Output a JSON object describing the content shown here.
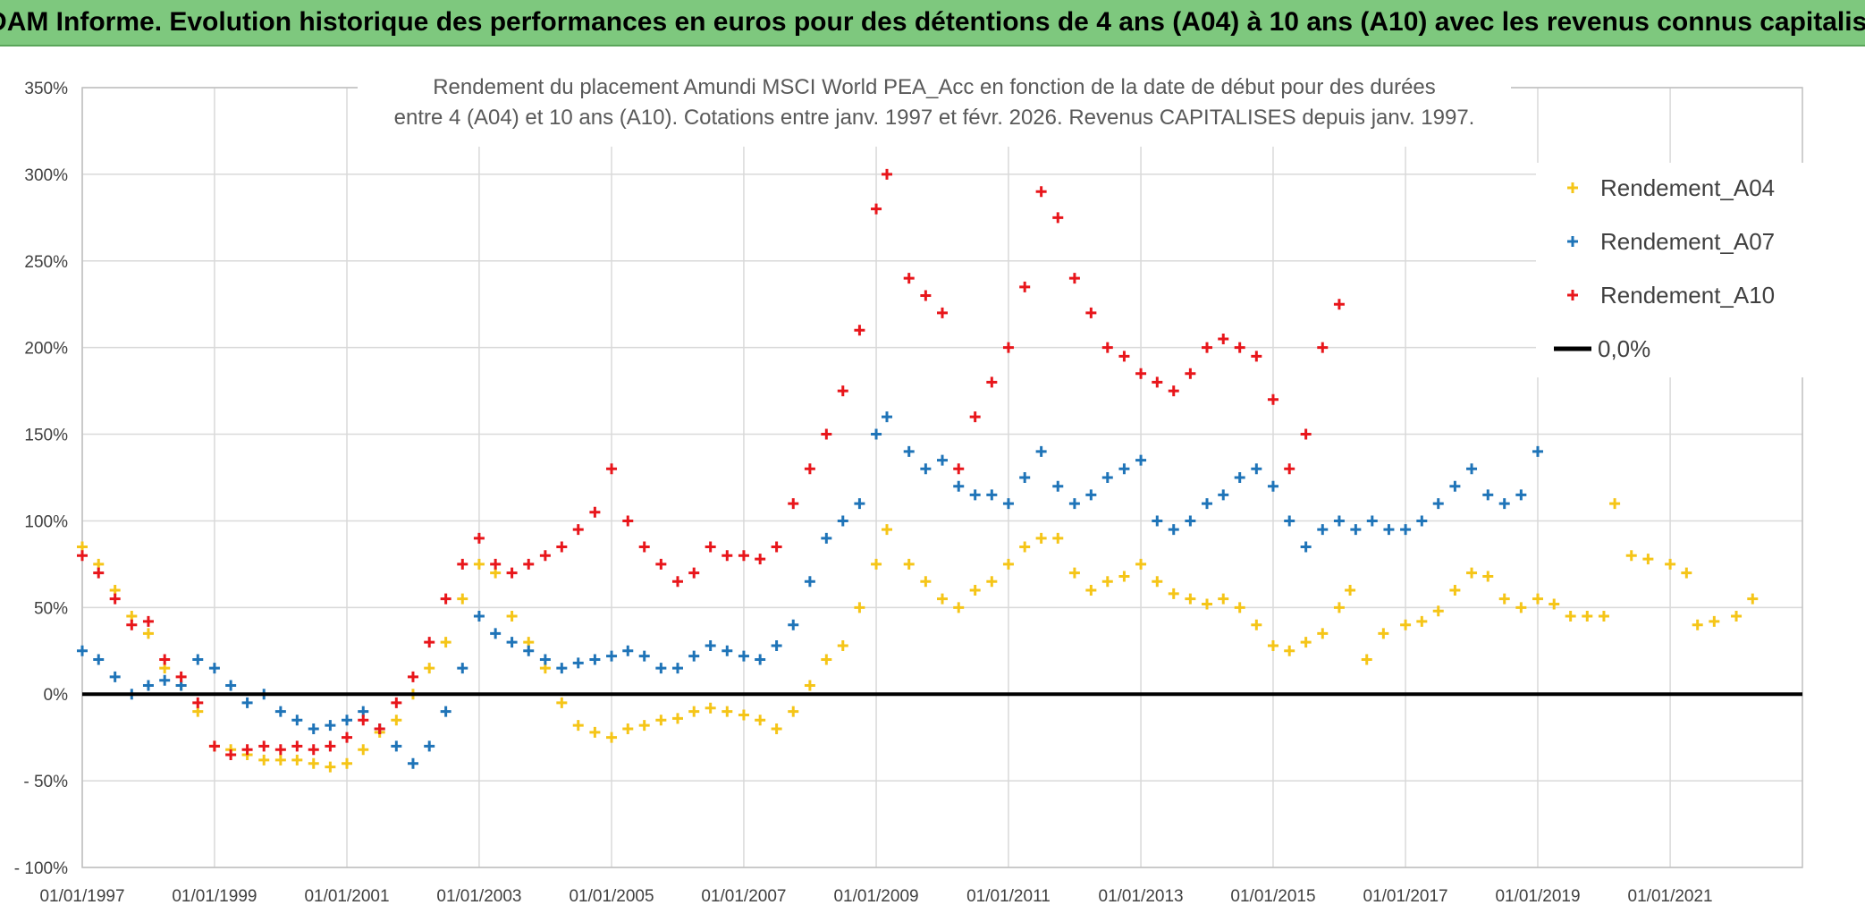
{
  "header": {
    "banner": "ADAM Informe. Evolution historique des performances en euros pour des détentions de 4 ans (A04) à 10 ans (A10) avec les revenus connus capitalisés"
  },
  "colors": {
    "banner_bg": "#7ec87e",
    "a04": "#f5c518",
    "a07": "#1f74b8",
    "a10": "#e8161b",
    "zero": "#000000",
    "grid": "#d9d9d9"
  },
  "chart_data": {
    "type": "scatter",
    "title": "Rendement du placement Amundi MSCI World PEA_Acc en fonction de la date de début pour des durées",
    "subtitle": "entre 4 (A04) et 10 ans (A10). Cotations entre janv. 1997 et févr. 2026. Revenus CAPITALISES depuis janv. 1997.",
    "xlabel": "",
    "ylabel": "",
    "xlim": [
      "1997-01-01",
      "2023-01-01"
    ],
    "ylim": [
      -100,
      350
    ],
    "x_ticks": [
      "01/01/1997",
      "01/01/1999",
      "01/01/2001",
      "01/01/2003",
      "01/01/2005",
      "01/01/2007",
      "01/01/2009",
      "01/01/2011",
      "01/01/2013",
      "01/01/2015",
      "01/01/2017",
      "01/01/2019",
      "01/01/2021"
    ],
    "y_ticks": [
      "- 100%",
      "- 50%",
      "0%",
      "50%",
      "100%",
      "150%",
      "200%",
      "250%",
      "300%",
      "350%"
    ],
    "y_tick_values": [
      -100,
      -50,
      0,
      50,
      100,
      150,
      200,
      250,
      300,
      350
    ],
    "grid": true,
    "legend_position": "top-right",
    "reference_line": {
      "name": "0,0%",
      "value": 0
    },
    "series": [
      {
        "name": "Rendement_A04",
        "marker": "+",
        "points": [
          [
            "1997-01-01",
            85
          ],
          [
            "1997-04-01",
            75
          ],
          [
            "1997-07-01",
            60
          ],
          [
            "1997-10-01",
            45
          ],
          [
            "1998-01-01",
            35
          ],
          [
            "1998-04-01",
            15
          ],
          [
            "1998-07-01",
            5
          ],
          [
            "1998-10-01",
            -10
          ],
          [
            "1999-01-01",
            -30
          ],
          [
            "1999-04-01",
            -32
          ],
          [
            "1999-07-01",
            -35
          ],
          [
            "1999-10-01",
            -38
          ],
          [
            "2000-01-01",
            -38
          ],
          [
            "2000-04-01",
            -38
          ],
          [
            "2000-07-01",
            -40
          ],
          [
            "2000-10-01",
            -42
          ],
          [
            "2001-01-01",
            -40
          ],
          [
            "2001-04-01",
            -32
          ],
          [
            "2001-07-01",
            -22
          ],
          [
            "2001-10-01",
            -15
          ],
          [
            "2002-01-01",
            0
          ],
          [
            "2002-04-01",
            15
          ],
          [
            "2002-07-01",
            30
          ],
          [
            "2002-10-01",
            55
          ],
          [
            "2003-01-01",
            75
          ],
          [
            "2003-04-01",
            70
          ],
          [
            "2003-07-01",
            45
          ],
          [
            "2003-10-01",
            30
          ],
          [
            "2004-01-01",
            15
          ],
          [
            "2004-04-01",
            -5
          ],
          [
            "2004-07-01",
            -18
          ],
          [
            "2004-10-01",
            -22
          ],
          [
            "2005-01-01",
            -25
          ],
          [
            "2005-04-01",
            -20
          ],
          [
            "2005-07-01",
            -18
          ],
          [
            "2005-10-01",
            -15
          ],
          [
            "2006-01-01",
            -14
          ],
          [
            "2006-04-01",
            -10
          ],
          [
            "2006-07-01",
            -8
          ],
          [
            "2006-10-01",
            -10
          ],
          [
            "2007-01-01",
            -12
          ],
          [
            "2007-04-01",
            -15
          ],
          [
            "2007-07-01",
            -20
          ],
          [
            "2007-10-01",
            -10
          ],
          [
            "2008-01-01",
            5
          ],
          [
            "2008-04-01",
            20
          ],
          [
            "2008-07-01",
            28
          ],
          [
            "2008-10-01",
            50
          ],
          [
            "2009-01-01",
            75
          ],
          [
            "2009-03-01",
            95
          ],
          [
            "2009-07-01",
            75
          ],
          [
            "2009-10-01",
            65
          ],
          [
            "2010-01-01",
            55
          ],
          [
            "2010-04-01",
            50
          ],
          [
            "2010-07-01",
            60
          ],
          [
            "2010-10-01",
            65
          ],
          [
            "2011-01-01",
            75
          ],
          [
            "2011-04-01",
            85
          ],
          [
            "2011-07-01",
            90
          ],
          [
            "2011-10-01",
            90
          ],
          [
            "2012-01-01",
            70
          ],
          [
            "2012-04-01",
            60
          ],
          [
            "2012-07-01",
            65
          ],
          [
            "2012-10-01",
            68
          ],
          [
            "2013-01-01",
            75
          ],
          [
            "2013-04-01",
            65
          ],
          [
            "2013-07-01",
            58
          ],
          [
            "2013-10-01",
            55
          ],
          [
            "2014-01-01",
            52
          ],
          [
            "2014-04-01",
            55
          ],
          [
            "2014-07-01",
            50
          ],
          [
            "2014-10-01",
            40
          ],
          [
            "2015-01-01",
            28
          ],
          [
            "2015-04-01",
            25
          ],
          [
            "2015-07-01",
            30
          ],
          [
            "2015-10-01",
            35
          ],
          [
            "2016-01-01",
            50
          ],
          [
            "2016-03-01",
            60
          ],
          [
            "2016-06-01",
            20
          ],
          [
            "2016-09-01",
            35
          ],
          [
            "2017-01-01",
            40
          ],
          [
            "2017-04-01",
            42
          ],
          [
            "2017-07-01",
            48
          ],
          [
            "2017-10-01",
            60
          ],
          [
            "2018-01-01",
            70
          ],
          [
            "2018-04-01",
            68
          ],
          [
            "2018-07-01",
            55
          ],
          [
            "2018-10-01",
            50
          ],
          [
            "2019-01-01",
            55
          ],
          [
            "2019-04-01",
            52
          ],
          [
            "2019-07-01",
            45
          ],
          [
            "2019-10-01",
            45
          ],
          [
            "2020-01-01",
            45
          ],
          [
            "2020-03-01",
            110
          ],
          [
            "2020-06-01",
            80
          ],
          [
            "2020-09-01",
            78
          ],
          [
            "2021-01-01",
            75
          ],
          [
            "2021-04-01",
            70
          ],
          [
            "2021-06-01",
            40
          ],
          [
            "2021-09-01",
            42
          ],
          [
            "2022-01-01",
            45
          ],
          [
            "2022-04-01",
            55
          ]
        ]
      },
      {
        "name": "Rendement_A07",
        "marker": "+",
        "points": [
          [
            "1997-01-01",
            25
          ],
          [
            "1997-04-01",
            20
          ],
          [
            "1997-07-01",
            10
          ],
          [
            "1997-10-01",
            0
          ],
          [
            "1998-01-01",
            5
          ],
          [
            "1998-04-01",
            8
          ],
          [
            "1998-07-01",
            5
          ],
          [
            "1998-10-01",
            20
          ],
          [
            "1999-01-01",
            15
          ],
          [
            "1999-04-01",
            5
          ],
          [
            "1999-07-01",
            -5
          ],
          [
            "1999-10-01",
            0
          ],
          [
            "2000-01-01",
            -10
          ],
          [
            "2000-04-01",
            -15
          ],
          [
            "2000-07-01",
            -20
          ],
          [
            "2000-10-01",
            -18
          ],
          [
            "2001-01-01",
            -15
          ],
          [
            "2001-04-01",
            -10
          ],
          [
            "2001-07-01",
            -20
          ],
          [
            "2001-10-01",
            -30
          ],
          [
            "2002-01-01",
            -40
          ],
          [
            "2002-04-01",
            -30
          ],
          [
            "2002-07-01",
            -10
          ],
          [
            "2002-10-01",
            15
          ],
          [
            "2003-01-01",
            45
          ],
          [
            "2003-04-01",
            35
          ],
          [
            "2003-07-01",
            30
          ],
          [
            "2003-10-01",
            25
          ],
          [
            "2004-01-01",
            20
          ],
          [
            "2004-04-01",
            15
          ],
          [
            "2004-07-01",
            18
          ],
          [
            "2004-10-01",
            20
          ],
          [
            "2005-01-01",
            22
          ],
          [
            "2005-04-01",
            25
          ],
          [
            "2005-07-01",
            22
          ],
          [
            "2005-10-01",
            15
          ],
          [
            "2006-01-01",
            15
          ],
          [
            "2006-04-01",
            22
          ],
          [
            "2006-07-01",
            28
          ],
          [
            "2006-10-01",
            25
          ],
          [
            "2007-01-01",
            22
          ],
          [
            "2007-04-01",
            20
          ],
          [
            "2007-07-01",
            28
          ],
          [
            "2007-10-01",
            40
          ],
          [
            "2008-01-01",
            65
          ],
          [
            "2008-04-01",
            90
          ],
          [
            "2008-07-01",
            100
          ],
          [
            "2008-10-01",
            110
          ],
          [
            "2009-01-01",
            150
          ],
          [
            "2009-03-01",
            160
          ],
          [
            "2009-07-01",
            140
          ],
          [
            "2009-10-01",
            130
          ],
          [
            "2010-01-01",
            135
          ],
          [
            "2010-04-01",
            120
          ],
          [
            "2010-07-01",
            115
          ],
          [
            "2010-10-01",
            115
          ],
          [
            "2011-01-01",
            110
          ],
          [
            "2011-04-01",
            125
          ],
          [
            "2011-07-01",
            140
          ],
          [
            "2011-10-01",
            120
          ],
          [
            "2012-01-01",
            110
          ],
          [
            "2012-04-01",
            115
          ],
          [
            "2012-07-01",
            125
          ],
          [
            "2012-10-01",
            130
          ],
          [
            "2013-01-01",
            135
          ],
          [
            "2013-04-01",
            100
          ],
          [
            "2013-07-01",
            95
          ],
          [
            "2013-10-01",
            100
          ],
          [
            "2014-01-01",
            110
          ],
          [
            "2014-04-01",
            115
          ],
          [
            "2014-07-01",
            125
          ],
          [
            "2014-10-01",
            130
          ],
          [
            "2015-01-01",
            120
          ],
          [
            "2015-04-01",
            100
          ],
          [
            "2015-07-01",
            85
          ],
          [
            "2015-10-01",
            95
          ],
          [
            "2016-01-01",
            100
          ],
          [
            "2016-04-01",
            95
          ],
          [
            "2016-07-01",
            100
          ],
          [
            "2016-10-01",
            95
          ],
          [
            "2017-01-01",
            95
          ],
          [
            "2017-04-01",
            100
          ],
          [
            "2017-07-01",
            110
          ],
          [
            "2017-10-01",
            120
          ],
          [
            "2018-01-01",
            130
          ],
          [
            "2018-04-01",
            115
          ],
          [
            "2018-07-01",
            110
          ],
          [
            "2018-10-01",
            115
          ],
          [
            "2019-01-01",
            140
          ]
        ]
      },
      {
        "name": "Rendement_A10",
        "marker": "+",
        "points": [
          [
            "1997-01-01",
            80
          ],
          [
            "1997-04-01",
            70
          ],
          [
            "1997-07-01",
            55
          ],
          [
            "1997-10-01",
            40
          ],
          [
            "1998-01-01",
            42
          ],
          [
            "1998-04-01",
            20
          ],
          [
            "1998-07-01",
            10
          ],
          [
            "1998-10-01",
            -5
          ],
          [
            "1999-01-01",
            -30
          ],
          [
            "1999-04-01",
            -35
          ],
          [
            "1999-07-01",
            -32
          ],
          [
            "1999-10-01",
            -30
          ],
          [
            "2000-01-01",
            -32
          ],
          [
            "2000-04-01",
            -30
          ],
          [
            "2000-07-01",
            -32
          ],
          [
            "2000-10-01",
            -30
          ],
          [
            "2001-01-01",
            -25
          ],
          [
            "2001-04-01",
            -15
          ],
          [
            "2001-07-01",
            -20
          ],
          [
            "2001-10-01",
            -5
          ],
          [
            "2002-01-01",
            10
          ],
          [
            "2002-04-01",
            30
          ],
          [
            "2002-07-01",
            55
          ],
          [
            "2002-10-01",
            75
          ],
          [
            "2003-01-01",
            90
          ],
          [
            "2003-04-01",
            75
          ],
          [
            "2003-07-01",
            70
          ],
          [
            "2003-10-01",
            75
          ],
          [
            "2004-01-01",
            80
          ],
          [
            "2004-04-01",
            85
          ],
          [
            "2004-07-01",
            95
          ],
          [
            "2004-10-01",
            105
          ],
          [
            "2005-01-01",
            130
          ],
          [
            "2005-04-01",
            100
          ],
          [
            "2005-07-01",
            85
          ],
          [
            "2005-10-01",
            75
          ],
          [
            "2006-01-01",
            65
          ],
          [
            "2006-04-01",
            70
          ],
          [
            "2006-07-01",
            85
          ],
          [
            "2006-10-01",
            80
          ],
          [
            "2007-01-01",
            80
          ],
          [
            "2007-04-01",
            78
          ],
          [
            "2007-07-01",
            85
          ],
          [
            "2007-10-01",
            110
          ],
          [
            "2008-01-01",
            130
          ],
          [
            "2008-04-01",
            150
          ],
          [
            "2008-07-01",
            175
          ],
          [
            "2008-10-01",
            210
          ],
          [
            "2009-01-01",
            280
          ],
          [
            "2009-03-01",
            300
          ],
          [
            "2009-07-01",
            240
          ],
          [
            "2009-10-01",
            230
          ],
          [
            "2010-01-01",
            220
          ],
          [
            "2010-04-01",
            130
          ],
          [
            "2010-07-01",
            160
          ],
          [
            "2010-10-01",
            180
          ],
          [
            "2011-01-01",
            200
          ],
          [
            "2011-04-01",
            235
          ],
          [
            "2011-07-01",
            290
          ],
          [
            "2011-10-01",
            275
          ],
          [
            "2012-01-01",
            240
          ],
          [
            "2012-04-01",
            220
          ],
          [
            "2012-07-01",
            200
          ],
          [
            "2012-10-01",
            195
          ],
          [
            "2013-01-01",
            185
          ],
          [
            "2013-04-01",
            180
          ],
          [
            "2013-07-01",
            175
          ],
          [
            "2013-10-01",
            185
          ],
          [
            "2014-01-01",
            200
          ],
          [
            "2014-04-01",
            205
          ],
          [
            "2014-07-01",
            200
          ],
          [
            "2014-10-01",
            195
          ],
          [
            "2015-01-01",
            170
          ],
          [
            "2015-04-01",
            130
          ],
          [
            "2015-07-01",
            150
          ],
          [
            "2015-10-01",
            200
          ],
          [
            "2016-01-01",
            225
          ]
        ]
      }
    ]
  }
}
